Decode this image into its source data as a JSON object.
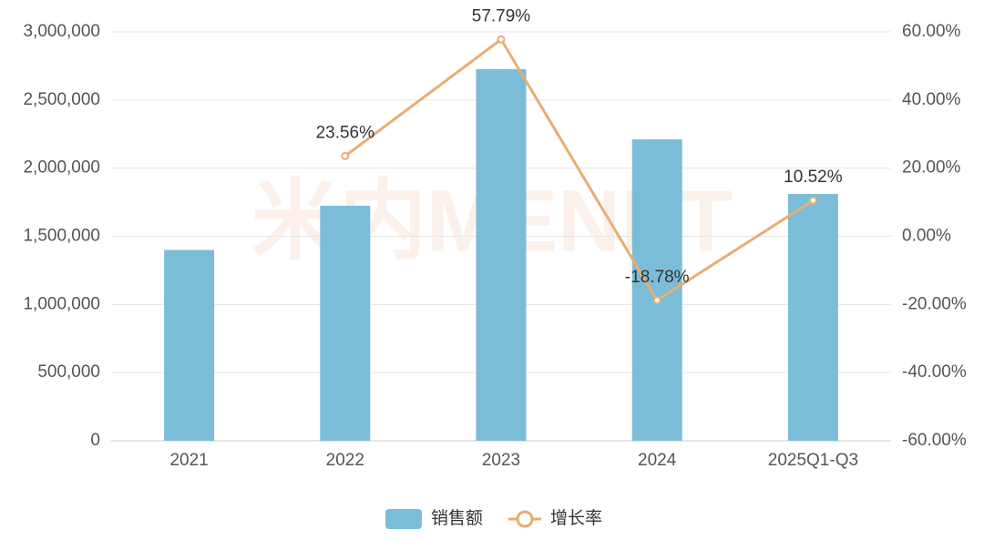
{
  "chart_data": {
    "type": "bar",
    "watermark": "米内MENET",
    "categories": [
      "2021",
      "2022",
      "2023",
      "2024",
      "2025Q1-Q3"
    ],
    "series": [
      {
        "name": "销售额",
        "type": "bar",
        "color": "#7bbdd9",
        "values": [
          1400000,
          1724000,
          2726000,
          2212000,
          1811000
        ]
      },
      {
        "name": "增长率",
        "type": "line",
        "axis": "y2",
        "color": "#e8ad72",
        "values": [
          null,
          23.56,
          57.79,
          -18.78,
          10.52
        ],
        "value_labels": [
          null,
          "23.56%",
          "57.79%",
          "-18.78%",
          "10.52%"
        ]
      }
    ],
    "ylim": [
      0,
      3000000
    ],
    "yticks": [
      0,
      {
        "value": 500000,
        "label": "500,000"
      },
      {
        "value": 1000000,
        "label": "1,000,000"
      },
      {
        "value": 1500000,
        "label": "1,500,000"
      },
      {
        "value": 2000000,
        "label": "2,000,000"
      },
      {
        "value": 2500000,
        "label": "2,500,000"
      },
      {
        "value": 3000000,
        "label": "3,000,000"
      }
    ],
    "y2lim": [
      -60,
      60
    ],
    "y2ticks": [
      {
        "value": -60,
        "label": "-60.00%"
      },
      {
        "value": -40,
        "label": "-40.00%"
      },
      {
        "value": -20,
        "label": "-20.00%"
      },
      {
        "value": 0,
        "label": "0.00%"
      },
      {
        "value": 20,
        "label": "20.00%"
      },
      {
        "value": 40,
        "label": "40.00%"
      },
      {
        "value": 60,
        "label": "60.00%"
      }
    ],
    "grid": true,
    "legend": "bottom"
  }
}
